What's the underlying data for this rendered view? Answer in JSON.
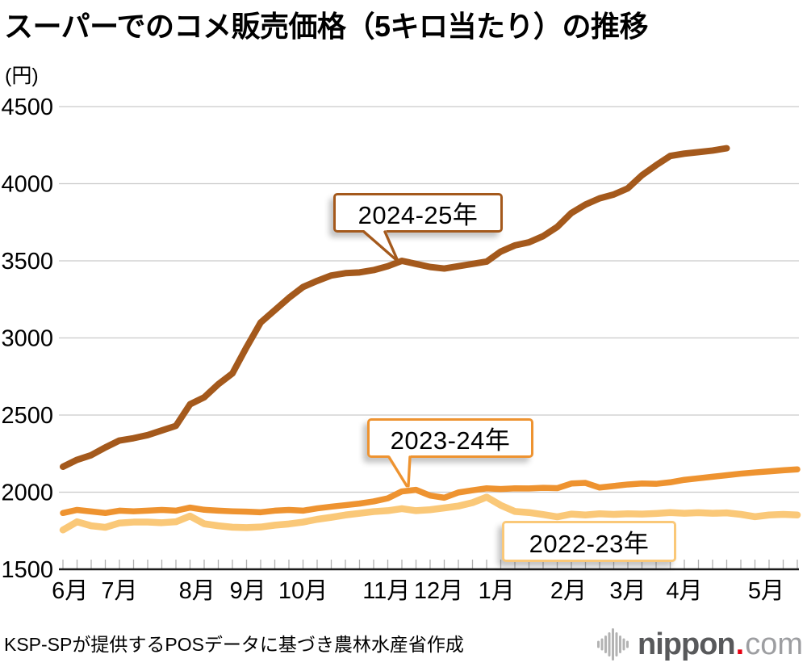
{
  "header": {
    "title": "スーパーでのコメ販売価格（5キロ当たり）の推移"
  },
  "chart_data": {
    "type": "line",
    "title": "スーパーでのコメ販売価格（5キロ当たり）の推移",
    "unit_label": "(円)",
    "xlabel": "",
    "ylabel": "円",
    "ylim": [
      1500,
      4500
    ],
    "y_ticks": [
      1500,
      2000,
      2500,
      3000,
      3500,
      4000,
      4500
    ],
    "grid": "horizontal",
    "legend_position": "callouts-on-plot",
    "weeks_total": 52,
    "x_months": [
      "6月",
      "7月",
      "8月",
      "9月",
      "10月",
      "11月",
      "12月",
      "1月",
      "2月",
      "3月",
      "4月",
      "5月"
    ],
    "month_positions_week": [
      0.5,
      4.0,
      9.5,
      13.1,
      17.0,
      22.9,
      26.6,
      30.7,
      35.8,
      40.0,
      44.0,
      49.8
    ],
    "series": [
      {
        "name": "2022-23年",
        "color": "#FAC878",
        "start_week": 0,
        "values": [
          1755,
          1808,
          1782,
          1772,
          1800,
          1806,
          1806,
          1802,
          1808,
          1845,
          1795,
          1782,
          1773,
          1770,
          1774,
          1786,
          1794,
          1806,
          1824,
          1837,
          1852,
          1863,
          1874,
          1880,
          1893,
          1880,
          1886,
          1898,
          1910,
          1932,
          1968,
          1915,
          1875,
          1868,
          1855,
          1840,
          1858,
          1852,
          1860,
          1856,
          1860,
          1858,
          1862,
          1868,
          1863,
          1867,
          1863,
          1866,
          1856,
          1841,
          1852,
          1856,
          1852
        ]
      },
      {
        "name": "2023-24年",
        "color": "#EE9330",
        "start_week": 0,
        "values": [
          1865,
          1885,
          1875,
          1865,
          1880,
          1876,
          1880,
          1885,
          1880,
          1900,
          1886,
          1880,
          1876,
          1874,
          1870,
          1880,
          1885,
          1880,
          1895,
          1906,
          1916,
          1926,
          1940,
          1960,
          2005,
          2015,
          1978,
          1964,
          1998,
          2012,
          2025,
          2020,
          2025,
          2024,
          2028,
          2026,
          2056,
          2060,
          2030,
          2040,
          2050,
          2056,
          2054,
          2064,
          2080,
          2090,
          2100,
          2110,
          2120,
          2128,
          2135,
          2142,
          2148
        ]
      },
      {
        "name": "2024-25年",
        "color": "#A4591C",
        "start_week": 0,
        "values": [
          2165,
          2210,
          2240,
          2290,
          2335,
          2350,
          2370,
          2400,
          2430,
          2570,
          2615,
          2700,
          2770,
          2940,
          3100,
          3180,
          3260,
          3330,
          3370,
          3405,
          3420,
          3425,
          3440,
          3465,
          3500,
          3480,
          3460,
          3450,
          3465,
          3480,
          3495,
          3560,
          3600,
          3620,
          3660,
          3720,
          3810,
          3865,
          3905,
          3930,
          3970,
          4055,
          4120,
          4180,
          4195,
          4205,
          4215,
          4230
        ]
      }
    ],
    "callouts": [
      {
        "label": "2024-25年",
        "series_index": 2,
        "points_to": {
          "week": 23.6,
          "value": 3500
        }
      },
      {
        "label": "2023-24年",
        "series_index": 1,
        "points_to": {
          "week": 24.4,
          "value": 2030
        }
      },
      {
        "label": "2022-23年",
        "series_index": 0
      }
    ]
  },
  "footer": {
    "source": "KSP-SPが提供するPOSデータに基づき農林水産省作成",
    "logo": {
      "main": "nippon",
      "dot": ".",
      "tld": "com"
    }
  },
  "colors": {
    "gridline": "#c9c9c9",
    "axis": "#1a1a1a",
    "week_tick": "#b0b0b0",
    "text": "#000000",
    "logo_wave": "#b3b3b3",
    "logo_main": "#58595b",
    "logo_dot": "#e60012",
    "logo_tld": "#9d9ea1"
  }
}
